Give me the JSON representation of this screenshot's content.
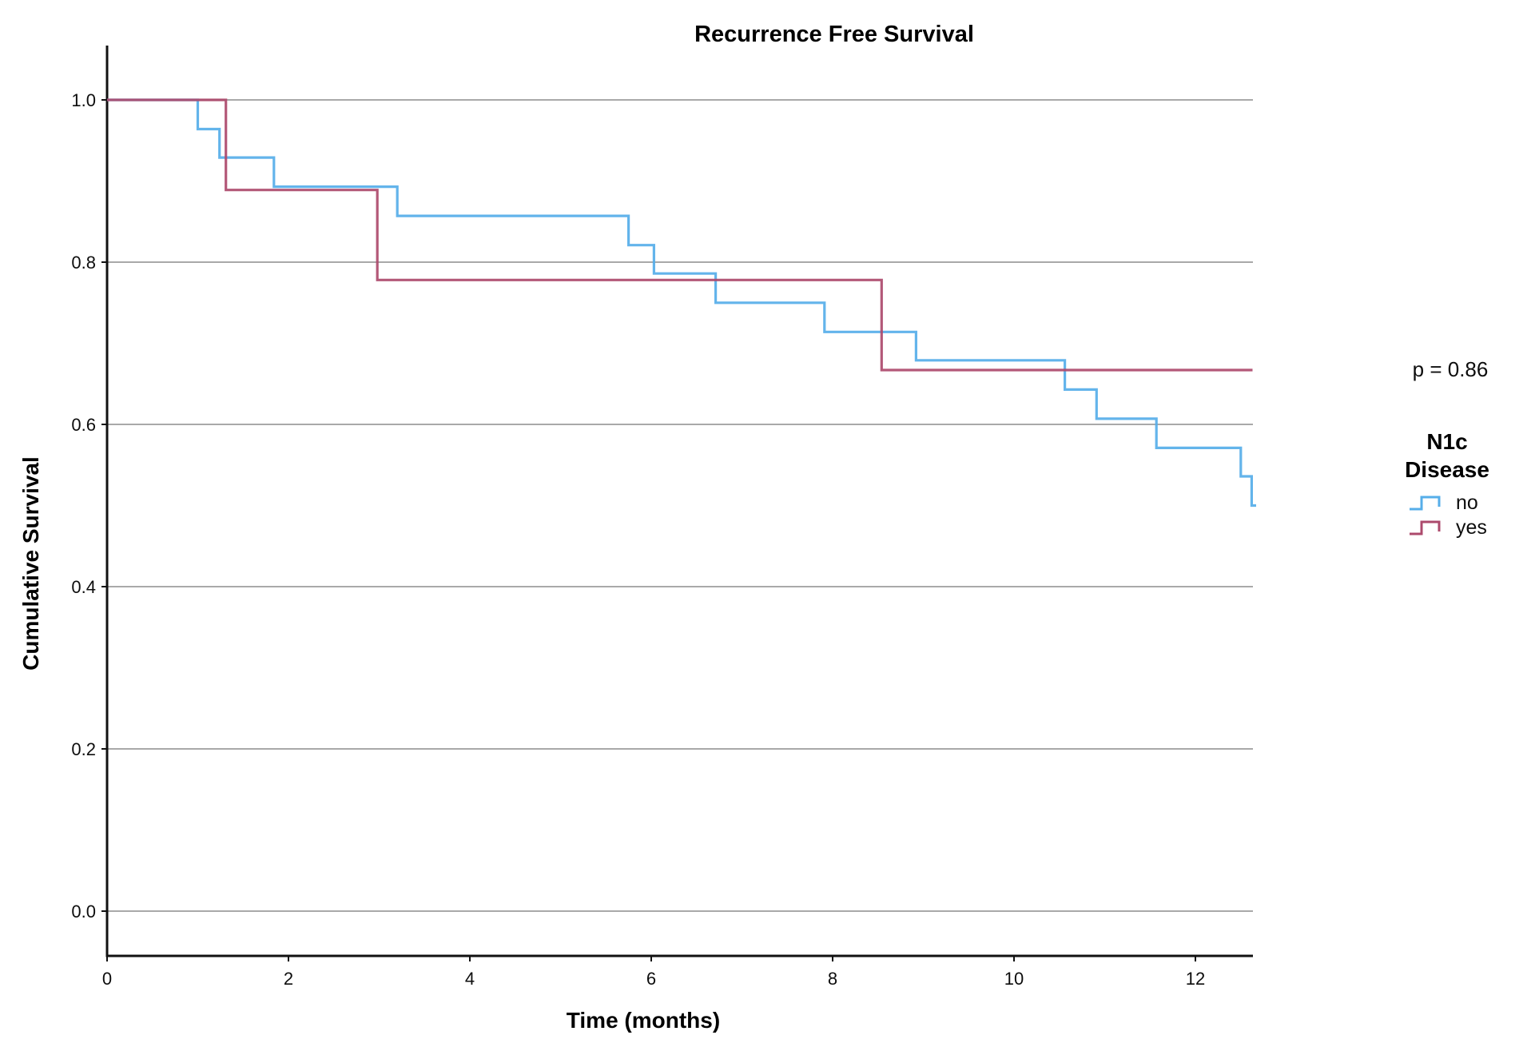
{
  "title": "Recurrence Free Survival",
  "p_value_label": "p = 0.86",
  "legend": {
    "title_line1": "N1c",
    "title_line2": "Disease",
    "entries": [
      {
        "label": "no",
        "color": "#56AEE9"
      },
      {
        "label": "yes",
        "color": "#AC4A6C"
      }
    ]
  },
  "axis": {
    "x_tick_labels": [
      "0",
      "2",
      "4",
      "6",
      "8",
      "10",
      "12"
    ],
    "y_tick_labels": [
      "0.0",
      "0.2",
      "0.4",
      "0.6",
      "0.8",
      "1.0"
    ]
  },
  "colors": {
    "grid": "#A9A9A9",
    "axis": "#111111",
    "series_no": "#56AEE9",
    "series_yes": "#AC4A6C"
  },
  "chart_data": {
    "type": "line",
    "subtype": "kaplan-meier-step",
    "title": "Recurrence Free Survival",
    "xlabel": "Time (months)",
    "ylabel": "Cumulative Survival",
    "xlim": [
      0,
      12.7
    ],
    "ylim": [
      0.0,
      1.0
    ],
    "x_ticks": [
      0,
      2,
      4,
      6,
      8,
      10,
      12
    ],
    "y_ticks": [
      0.0,
      0.2,
      0.4,
      0.6,
      0.8,
      1.0
    ],
    "grid": true,
    "legend_position": "right",
    "legend_title": "N1c Disease",
    "annotation": "p = 0.86",
    "series": [
      {
        "name": "no",
        "color": "#56AEE9",
        "end_x": 12.67,
        "points": [
          [
            0,
            1.0
          ],
          [
            1.0,
            0.964
          ],
          [
            1.24,
            0.929
          ],
          [
            1.84,
            0.893
          ],
          [
            3.2,
            0.857
          ],
          [
            5.75,
            0.821
          ],
          [
            6.03,
            0.786
          ],
          [
            6.71,
            0.75
          ],
          [
            7.91,
            0.714
          ],
          [
            8.92,
            0.679
          ],
          [
            10.56,
            0.643
          ],
          [
            10.91,
            0.607
          ],
          [
            11.57,
            0.571
          ],
          [
            12.5,
            0.536
          ],
          [
            12.62,
            0.5
          ]
        ]
      },
      {
        "name": "yes",
        "color": "#AC4A6C",
        "end_x": 12.63,
        "points": [
          [
            0,
            1.0
          ],
          [
            1.31,
            0.889
          ],
          [
            2.98,
            0.778
          ],
          [
            8.54,
            0.667
          ]
        ]
      }
    ]
  }
}
